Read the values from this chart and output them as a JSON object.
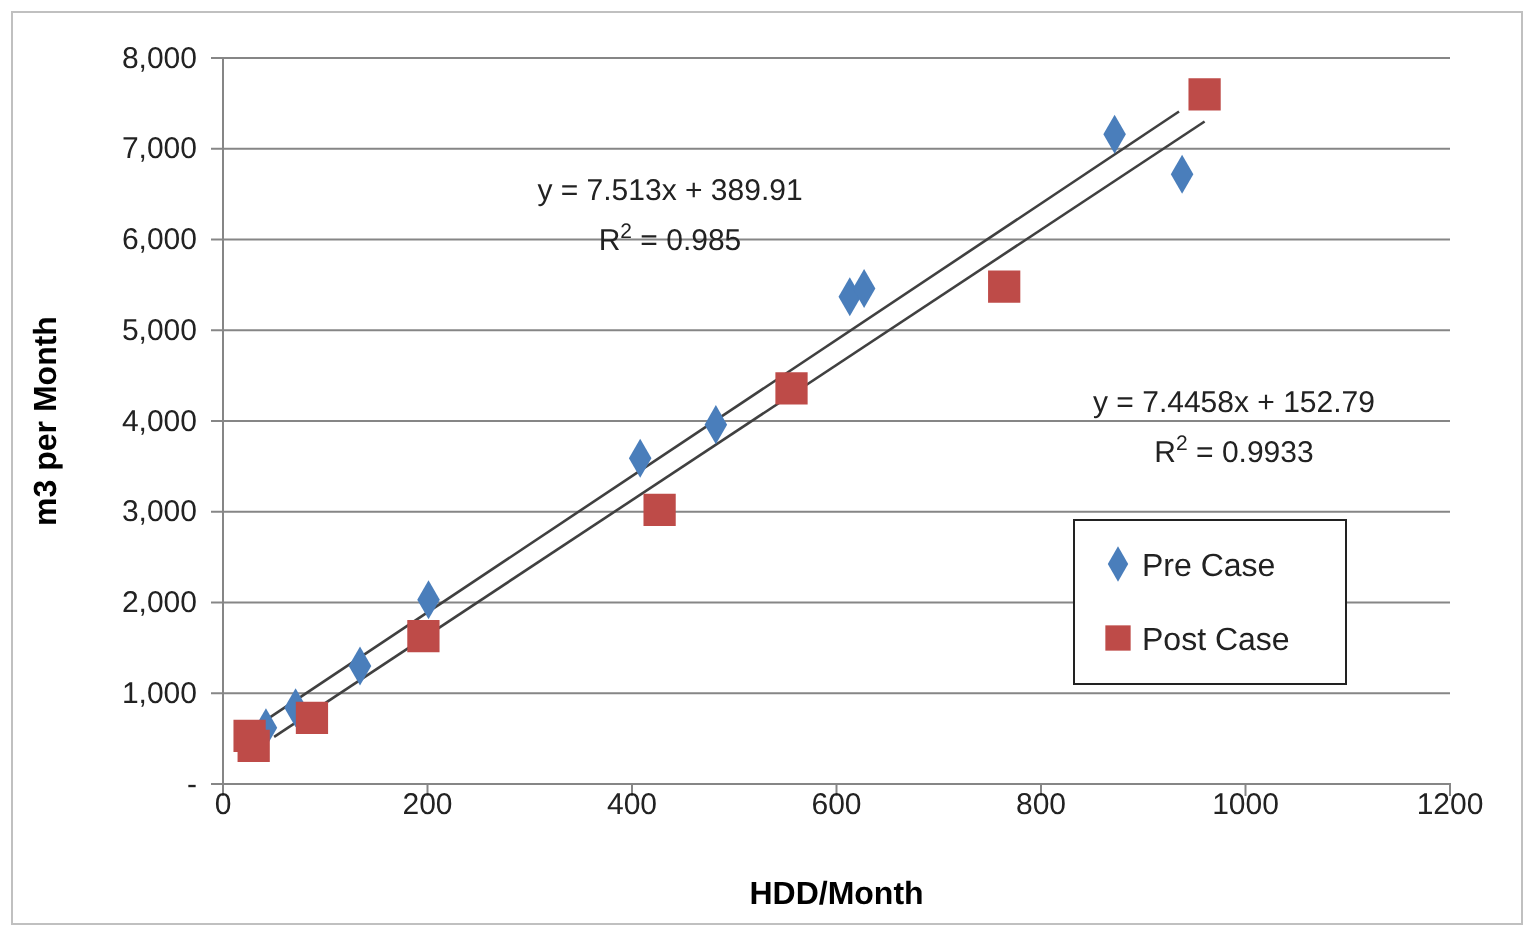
{
  "chart_data": {
    "type": "scatter",
    "xlabel": "HDD/Month",
    "ylabel": "m3 per Month",
    "xlim": [
      0,
      1200
    ],
    "xticks": [
      0,
      200,
      400,
      600,
      800,
      1000,
      1200
    ],
    "ylim": [
      0,
      8000
    ],
    "yticks": [
      {
        "value": 0,
        "label": "-"
      },
      {
        "value": 1000,
        "label": "1,000"
      },
      {
        "value": 2000,
        "label": "2,000"
      },
      {
        "value": 3000,
        "label": "3,000"
      },
      {
        "value": 4000,
        "label": "4,000"
      },
      {
        "value": 5000,
        "label": "5,000"
      },
      {
        "value": 6000,
        "label": "6,000"
      },
      {
        "value": 7000,
        "label": "7,000"
      },
      {
        "value": 8000,
        "label": "8,000"
      }
    ],
    "grid": "y",
    "legend": "bottom right",
    "series": [
      {
        "name": "Pre Case",
        "color": "#4a7ebb",
        "marker": "diamond",
        "x": [
          42,
          71,
          134,
          201,
          408,
          482,
          613,
          627,
          872,
          938
        ],
        "values": [
          620,
          840,
          1300,
          2030,
          3590,
          3960,
          5370,
          5460,
          7160,
          6720
        ]
      },
      {
        "name": "Post Case",
        "color": "#be4b48",
        "marker": "square",
        "x": [
          26,
          30,
          87,
          196,
          427,
          556,
          764,
          960
        ],
        "values": [
          530,
          420,
          730,
          1630,
          3020,
          4360,
          5480,
          7600
        ]
      },
      {
        "type": "line",
        "color": "#404040",
        "marker": "none",
        "x": [
          36,
          935
        ],
        "values": [
          660,
          7410
        ]
      },
      {
        "type": "line",
        "color": "#404040",
        "marker": "none",
        "x": [
          50,
          960
        ],
        "values": [
          520,
          7300
        ]
      }
    ],
    "annotations": [
      "y = 7.513x + 389.91",
      "R$^{2}$ = 0.985",
      "y = 7.4458x + 152.79",
      "R$^{2}$ = 0.9933"
    ]
  }
}
